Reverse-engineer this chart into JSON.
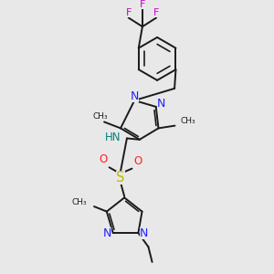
{
  "background_color": "#e8e8e8",
  "bond_color": "#1a1a1a",
  "N_color": "#2020ff",
  "O_color": "#ff2020",
  "S_color": "#bbbb00",
  "F_color": "#cc00cc",
  "H_color": "#008080",
  "font_size": 8.0,
  "bond_width": 1.4,
  "fig_w": 3.0,
  "fig_h": 3.0,
  "dpi": 100,
  "xlim": [
    0,
    10
  ],
  "ylim": [
    0,
    10.5
  ]
}
